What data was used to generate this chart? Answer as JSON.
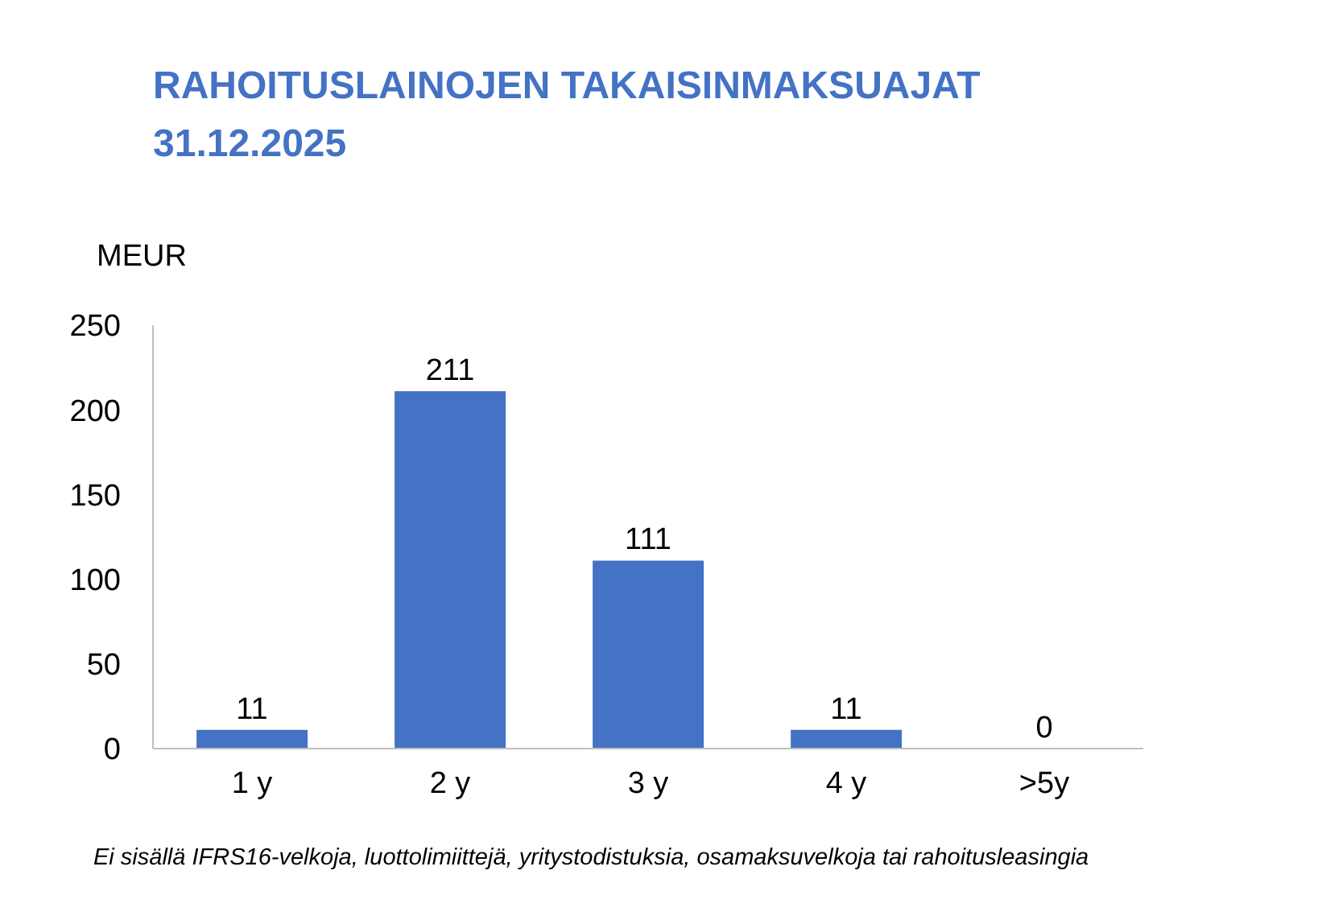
{
  "chart_data": {
    "type": "bar",
    "title": "RAHOITUSLAINOJEN TAKAISINMAKSUAJAT 31.12.2025",
    "ylabel": "MEUR",
    "annotations": [
      "Ei sisällä IFRS16-velkoja, luottolimiittejä, yritystodistuksia, osamaksuvelkoja tai rahoitusleasingia"
    ],
    "categories": [
      "1 y",
      "2 y",
      "3 y",
      "4 y",
      ">5y"
    ],
    "values": [
      11,
      211,
      111,
      11,
      0
    ],
    "color": "#4472c4",
    "ylim": [
      0,
      250
    ],
    "yticks": [
      0,
      50,
      100,
      150,
      200,
      250
    ],
    "data_labels": true
  }
}
